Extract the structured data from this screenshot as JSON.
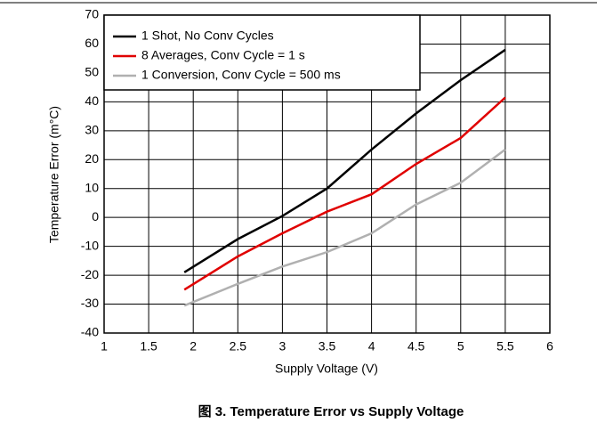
{
  "chart_data": {
    "type": "line",
    "caption": "图 3. Temperature Error vs Supply Voltage",
    "xlabel": "Supply Voltage (V)",
    "ylabel": "Temperature Error (m°C)",
    "x": [
      1.9,
      2.5,
      3,
      3.5,
      4,
      4.5,
      5,
      5.5
    ],
    "series": [
      {
        "name": "1 Shot, No Conv Cycles",
        "color": "#000000",
        "values": [
          -19,
          -7.5,
          0.5,
          10,
          23.5,
          36,
          47.5,
          58
        ]
      },
      {
        "name": "8 Averages, Conv Cycle = 1 s",
        "color": "#e00000",
        "values": [
          -25,
          -13.5,
          -5.5,
          2,
          8,
          18.5,
          27.5,
          41.5
        ]
      },
      {
        "name": "1 Conversion, Conv Cycle = 500 ms",
        "color": "#b0b0b0",
        "values": [
          -30.5,
          -23,
          -17,
          -12,
          -5.5,
          4.5,
          12,
          23.5
        ]
      }
    ],
    "xlim": [
      1,
      6
    ],
    "xticks": [
      1,
      1.5,
      2,
      2.5,
      3,
      3.5,
      4,
      4.5,
      5,
      5.5,
      6
    ],
    "ylim": [
      -40,
      70
    ],
    "yticks": [
      -40,
      -30,
      -20,
      -10,
      0,
      10,
      20,
      30,
      40,
      50,
      60,
      70
    ],
    "grid": true,
    "legend": "upper left"
  }
}
